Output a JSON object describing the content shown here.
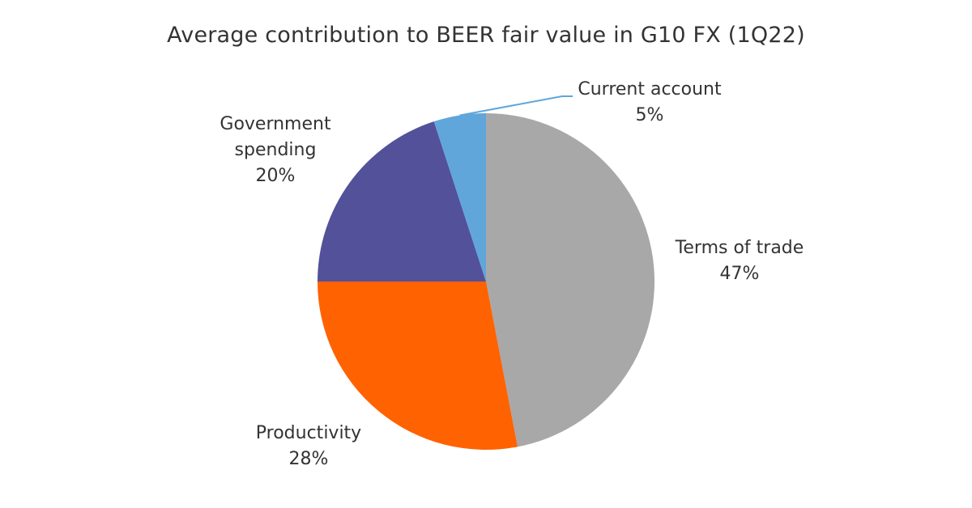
{
  "chart_data": {
    "type": "pie",
    "title": "Average contribution to BEER fair value in G10 FX (1Q22)",
    "slices": [
      {
        "label": [
          "Terms of trade"
        ],
        "value": 47,
        "value_label": "47%",
        "color": "#a8a8a8"
      },
      {
        "label": [
          "Productivity"
        ],
        "value": 28,
        "value_label": "28%",
        "color": "#ff6200"
      },
      {
        "label": [
          "Government",
          "spending"
        ],
        "value": 20,
        "value_label": "20%",
        "color": "#525199"
      },
      {
        "label": [
          "Current account"
        ],
        "value": 5,
        "value_label": "5%",
        "color": "#60a6da"
      }
    ],
    "start": "12 o'clock",
    "direction": "clockwise",
    "legend": "none"
  }
}
